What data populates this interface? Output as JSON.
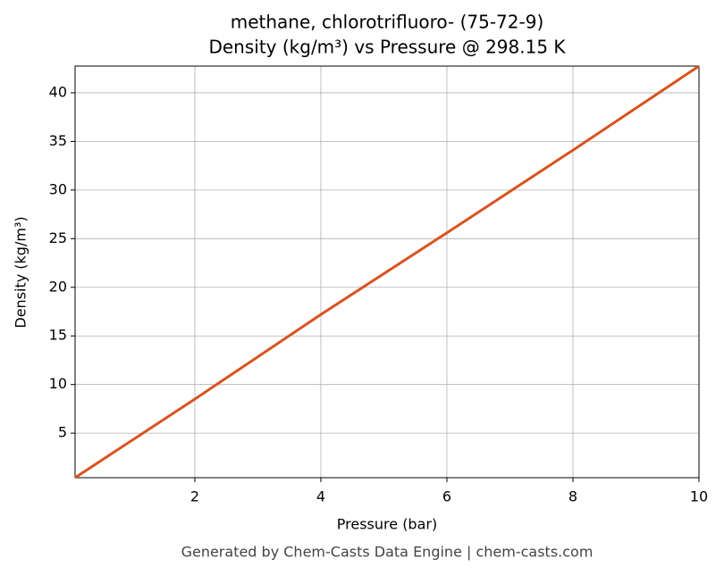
{
  "chart_data": {
    "type": "line",
    "title": "methane, chlorotrifluoro- (75-72-9)",
    "subtitle": "Density (kg/m³) vs Pressure @ 298.15 K",
    "x_label": "Pressure (bar)",
    "y_label": "Density (kg/m³)",
    "footer": "Generated by Chem-Casts Data Engine | chem-casts.com",
    "x": [
      0.1,
      2,
      4,
      6,
      8,
      10
    ],
    "series": [
      {
        "name": "Density",
        "color": "#d9531e",
        "values": [
          0.42,
          8.5,
          17.2,
          25.6,
          34.1,
          42.75
        ]
      }
    ],
    "xlim": [
      0.1,
      10
    ],
    "xticks": [
      2,
      4,
      6,
      8,
      10
    ],
    "ylim": [
      0.42,
      42.75
    ],
    "yticks": [
      5,
      10,
      15,
      20,
      25,
      30,
      35,
      40
    ],
    "grid": true
  }
}
